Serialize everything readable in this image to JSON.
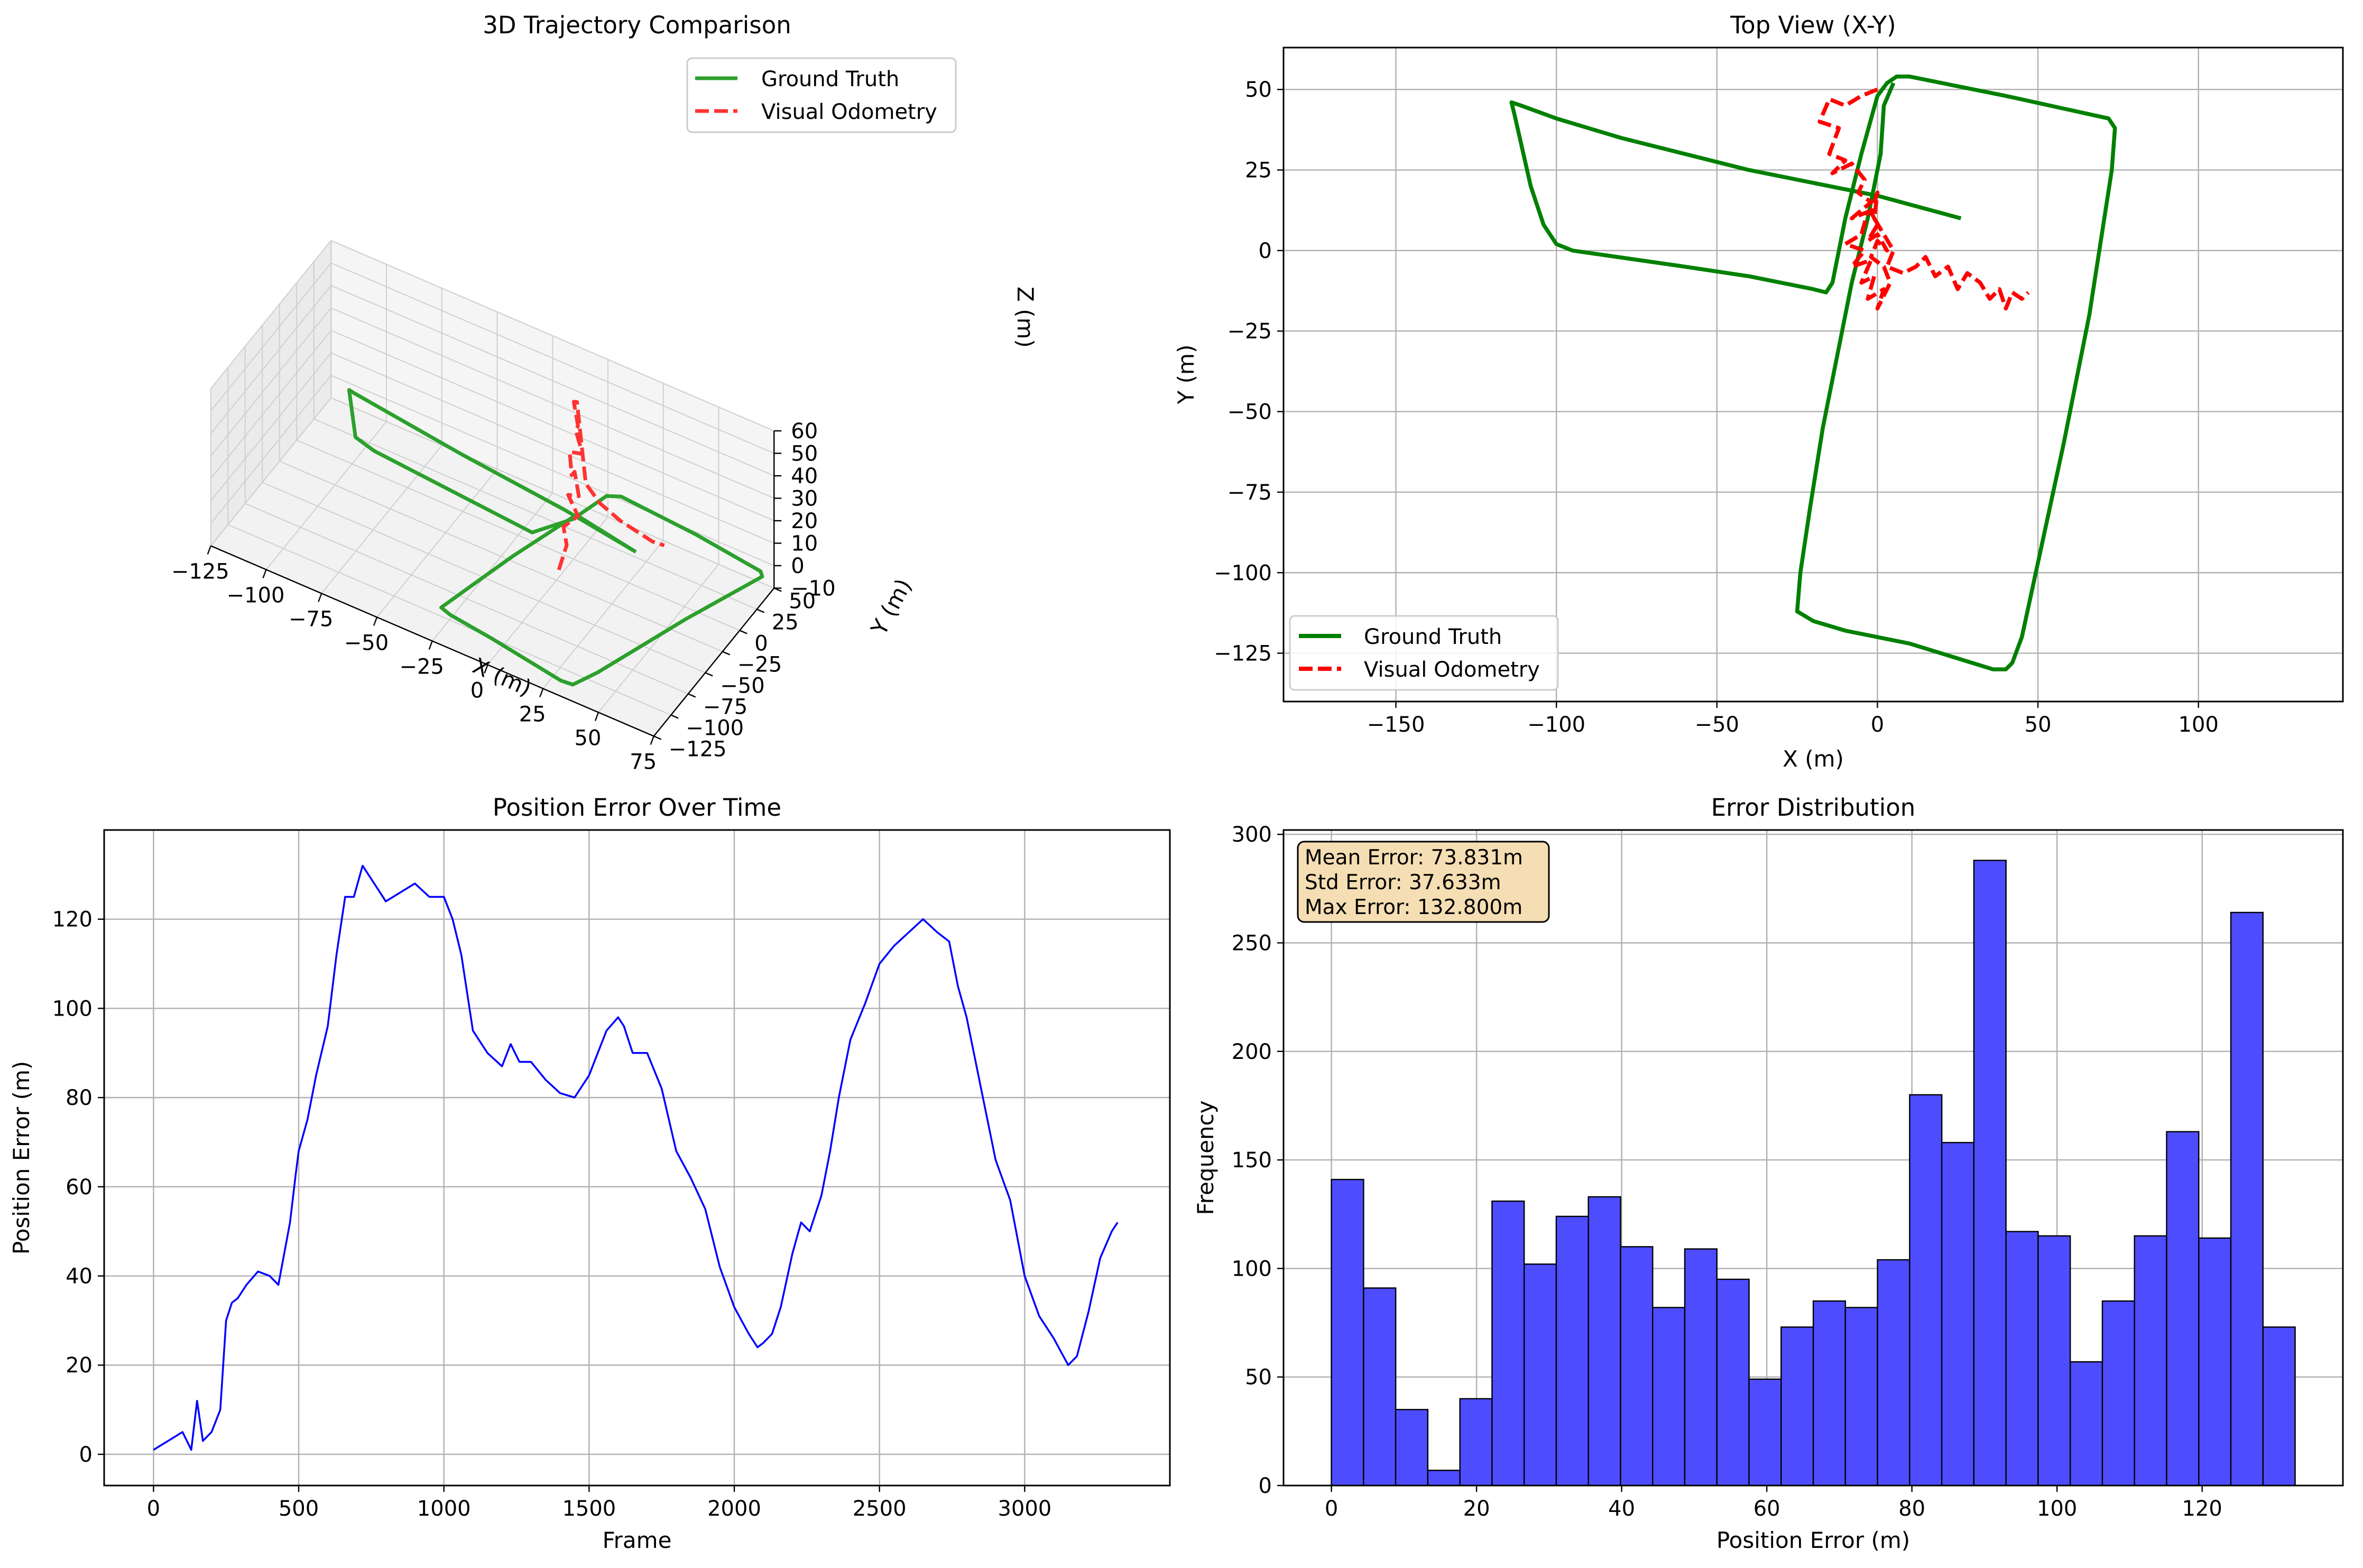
{
  "colors": {
    "ground_truth": "#008000",
    "visual_odometry": "#ff0000",
    "error_line": "#0000ff",
    "hist_fill": "#4d4dff",
    "grid": "#b0b0b0",
    "textbox_fill": "#f5deb3"
  },
  "chart_data": [
    {
      "id": "trajectory_3d",
      "type": "line",
      "projection": "3d",
      "title": "3D Trajectory Comparison",
      "xlabel": "X (m)",
      "ylabel": "Y (m)",
      "zlabel": "Z (m)",
      "xticks": [
        "−125",
        "−100",
        "−75",
        "−50",
        "−25",
        "0",
        "25",
        "50",
        "75"
      ],
      "yticks": [
        "−125",
        "−100",
        "−75",
        "−50",
        "−25",
        "0",
        "25",
        "50"
      ],
      "zticks": [
        "−10",
        "0",
        "10",
        "20",
        "30",
        "40",
        "50",
        "60"
      ],
      "legend": {
        "placement": "top-right",
        "entries": [
          "Ground Truth",
          "Visual Odometry"
        ]
      },
      "series": [
        {
          "name": "Ground Truth",
          "style": "solid",
          "color": "#008000",
          "points": [
            [
              25,
              10,
              0
            ],
            [
              -10,
              20,
              0
            ],
            [
              -60,
              30,
              0
            ],
            [
              -112,
              43,
              0
            ],
            [
              -115,
              44,
              0
            ],
            [
              -100,
              5,
              0
            ],
            [
              -90,
              0,
              0
            ],
            [
              -40,
              -8,
              0
            ],
            [
              -15,
              -12,
              0
            ],
            [
              -5,
              15,
              0
            ],
            [
              0,
              48,
              0
            ],
            [
              5,
              53,
              0
            ],
            [
              40,
              48,
              0
            ],
            [
              72,
              40,
              0
            ],
            [
              74,
              36,
              0
            ],
            [
              60,
              -30,
              0
            ],
            [
              45,
              -110,
              0
            ],
            [
              40,
              -130,
              0
            ],
            [
              35,
              -131,
              0
            ],
            [
              0,
              -120,
              0
            ],
            [
              -20,
              -115,
              0
            ],
            [
              -25,
              -112,
              0
            ],
            [
              -22,
              -90,
              0
            ],
            [
              -15,
              -40,
              0
            ],
            [
              -5,
              20,
              0
            ],
            [
              25,
              10,
              0
            ]
          ]
        },
        {
          "name": "Visual Odometry",
          "style": "dashed",
          "color": "#ff0000",
          "points": [
            [
              -2,
              -15,
              -10
            ],
            [
              0,
              -10,
              0
            ],
            [
              -3,
              -5,
              5
            ],
            [
              2,
              0,
              10
            ],
            [
              -4,
              5,
              15
            ],
            [
              3,
              -2,
              20
            ],
            [
              -2,
              8,
              25
            ],
            [
              1,
              -6,
              30
            ],
            [
              -3,
              4,
              35
            ],
            [
              5,
              -3,
              40
            ],
            [
              -1,
              6,
              45
            ],
            [
              2,
              0,
              50
            ],
            [
              -3,
              10,
              55
            ],
            [
              0,
              5,
              58
            ],
            [
              8,
              -8,
              30
            ],
            [
              15,
              -10,
              25
            ],
            [
              25,
              -12,
              22
            ],
            [
              40,
              -14,
              20
            ],
            [
              45,
              -13,
              20
            ]
          ]
        }
      ]
    },
    {
      "id": "top_view",
      "type": "line",
      "title": "Top View (X-Y)",
      "xlabel": "X (m)",
      "ylabel": "Y (m)",
      "xlim": [
        -185,
        145
      ],
      "ylim": [
        -140,
        63
      ],
      "xticks": [
        -150,
        -100,
        -50,
        0,
        50,
        100
      ],
      "yticks": [
        -125,
        -100,
        -75,
        -50,
        -25,
        0,
        25,
        50
      ],
      "grid": true,
      "legend": {
        "placement": "lower-left",
        "entries": [
          "Ground Truth",
          "Visual Odometry"
        ]
      },
      "series": [
        {
          "name": "Ground Truth",
          "style": "solid",
          "color": "#008000",
          "points": [
            [
              26,
              10
            ],
            [
              0,
              17
            ],
            [
              -40,
              25
            ],
            [
              -80,
              35
            ],
            [
              -100,
              41
            ],
            [
              -111,
              45
            ],
            [
              -114,
              46
            ],
            [
              -113,
              42
            ],
            [
              -108,
              20
            ],
            [
              -104,
              8
            ],
            [
              -100,
              2
            ],
            [
              -95,
              0
            ],
            [
              -60,
              -5
            ],
            [
              -40,
              -8
            ],
            [
              -20,
              -12
            ],
            [
              -16,
              -13
            ],
            [
              -14,
              -10
            ],
            [
              -10,
              10
            ],
            [
              -5,
              30
            ],
            [
              0,
              48
            ],
            [
              3,
              52
            ],
            [
              6,
              54
            ],
            [
              10,
              54
            ],
            [
              40,
              48
            ],
            [
              72,
              41
            ],
            [
              74,
              38
            ],
            [
              73,
              25
            ],
            [
              66,
              -20
            ],
            [
              58,
              -60
            ],
            [
              45,
              -120
            ],
            [
              42,
              -128
            ],
            [
              40,
              -130
            ],
            [
              36,
              -130
            ],
            [
              10,
              -122
            ],
            [
              -10,
              -118
            ],
            [
              -20,
              -115
            ],
            [
              -25,
              -112
            ],
            [
              -24,
              -100
            ],
            [
              -21,
              -80
            ],
            [
              -17,
              -55
            ],
            [
              -12,
              -30
            ],
            [
              -8,
              -10
            ],
            [
              -3,
              10
            ],
            [
              1,
              30
            ],
            [
              2,
              45
            ],
            [
              5,
              52
            ]
          ]
        },
        {
          "name": "Visual Odometry",
          "style": "dashed",
          "color": "#ff0000",
          "points": [
            [
              0,
              50
            ],
            [
              -5,
              48
            ],
            [
              -10,
              45
            ],
            [
              -15,
              47
            ],
            [
              -18,
              40
            ],
            [
              -12,
              38
            ],
            [
              -15,
              30
            ],
            [
              -10,
              28
            ],
            [
              -14,
              24
            ],
            [
              -8,
              27
            ],
            [
              -4,
              22
            ],
            [
              -6,
              18
            ],
            [
              -2,
              15
            ],
            [
              -8,
              10
            ],
            [
              -3,
              12
            ],
            [
              -5,
              5
            ],
            [
              -10,
              2
            ],
            [
              -4,
              0
            ],
            [
              -8,
              -5
            ],
            [
              -2,
              -3
            ],
            [
              -5,
              -10
            ],
            [
              -1,
              -8
            ],
            [
              -3,
              -15
            ],
            [
              2,
              -12
            ],
            [
              0,
              -18
            ],
            [
              4,
              -10
            ],
            [
              2,
              -5
            ],
            [
              -2,
              -2
            ],
            [
              0,
              3
            ],
            [
              3,
              0
            ],
            [
              0,
              5
            ],
            [
              -3,
              3
            ],
            [
              0,
              8
            ],
            [
              -2,
              12
            ],
            [
              0,
              18
            ],
            [
              -1,
              10
            ],
            [
              2,
              5
            ],
            [
              5,
              0
            ],
            [
              3,
              -5
            ],
            [
              8,
              -7
            ],
            [
              12,
              -5
            ],
            [
              15,
              -2
            ],
            [
              18,
              -8
            ],
            [
              22,
              -5
            ],
            [
              25,
              -12
            ],
            [
              28,
              -7
            ],
            [
              32,
              -10
            ],
            [
              35,
              -15
            ],
            [
              38,
              -12
            ],
            [
              40,
              -18
            ],
            [
              42,
              -13
            ],
            [
              45,
              -15
            ],
            [
              47,
              -13
            ]
          ]
        }
      ]
    },
    {
      "id": "position_error",
      "type": "line",
      "title": "Position Error Over Time",
      "xlabel": "Frame",
      "ylabel": "Position Error (m)",
      "xlim": [
        -170,
        3500
      ],
      "ylim": [
        -7,
        140
      ],
      "xticks": [
        0,
        500,
        1000,
        1500,
        2000,
        2500,
        3000
      ],
      "yticks": [
        0,
        20,
        40,
        60,
        80,
        100,
        120
      ],
      "grid": true,
      "series": [
        {
          "name": "",
          "style": "solid",
          "color": "#0000ff",
          "x": [
            0,
            50,
            100,
            130,
            150,
            170,
            200,
            230,
            250,
            270,
            290,
            320,
            360,
            400,
            430,
            450,
            470,
            490,
            500,
            530,
            560,
            600,
            630,
            660,
            690,
            720,
            760,
            800,
            850,
            900,
            950,
            1000,
            1030,
            1060,
            1100,
            1150,
            1200,
            1230,
            1260,
            1300,
            1350,
            1400,
            1450,
            1500,
            1530,
            1560,
            1600,
            1620,
            1650,
            1700,
            1750,
            1800,
            1850,
            1900,
            1950,
            2000,
            2050,
            2080,
            2100,
            2130,
            2160,
            2200,
            2230,
            2260,
            2300,
            2330,
            2360,
            2400,
            2450,
            2500,
            2550,
            2600,
            2650,
            2700,
            2740,
            2770,
            2800,
            2850,
            2900,
            2950,
            3000,
            3050,
            3100,
            3150,
            3180,
            3220,
            3260,
            3300,
            3320
          ],
          "y": [
            1,
            3,
            5,
            1,
            12,
            3,
            5,
            10,
            30,
            34,
            35,
            38,
            41,
            40,
            38,
            45,
            52,
            63,
            68,
            75,
            85,
            96,
            112,
            125,
            125,
            132,
            128,
            124,
            126,
            128,
            125,
            125,
            120,
            112,
            95,
            90,
            87,
            92,
            88,
            88,
            84,
            81,
            80,
            85,
            90,
            95,
            98,
            96,
            90,
            90,
            82,
            68,
            62,
            55,
            42,
            33,
            27,
            24,
            25,
            27,
            33,
            45,
            52,
            50,
            58,
            68,
            80,
            93,
            101,
            110,
            114,
            117,
            120,
            117,
            115,
            105,
            98,
            82,
            66,
            57,
            40,
            31,
            26,
            20,
            22,
            32,
            44,
            50,
            52
          ]
        }
      ]
    },
    {
      "id": "error_distribution",
      "type": "bar",
      "subtype": "histogram",
      "title": "Error Distribution",
      "xlabel": "Position Error (m)",
      "ylabel": "Frequency",
      "xlim": [
        -6.6,
        139.4
      ],
      "ylim": [
        0,
        302
      ],
      "xticks": [
        0,
        20,
        40,
        60,
        80,
        100,
        120
      ],
      "yticks": [
        0,
        50,
        100,
        150,
        200,
        250,
        300
      ],
      "grid": true,
      "bin_start": 0,
      "bin_width": 4.427,
      "values": [
        141,
        91,
        35,
        7,
        40,
        131,
        102,
        124,
        133,
        110,
        82,
        109,
        95,
        49,
        73,
        85,
        82,
        104,
        180,
        158,
        288,
        117,
        115,
        57,
        85,
        115,
        163,
        114,
        264,
        73
      ],
      "annotation": [
        "Mean Error: 73.831m",
        "Std Error: 37.633m",
        "Max Error: 132.800m"
      ]
    }
  ]
}
